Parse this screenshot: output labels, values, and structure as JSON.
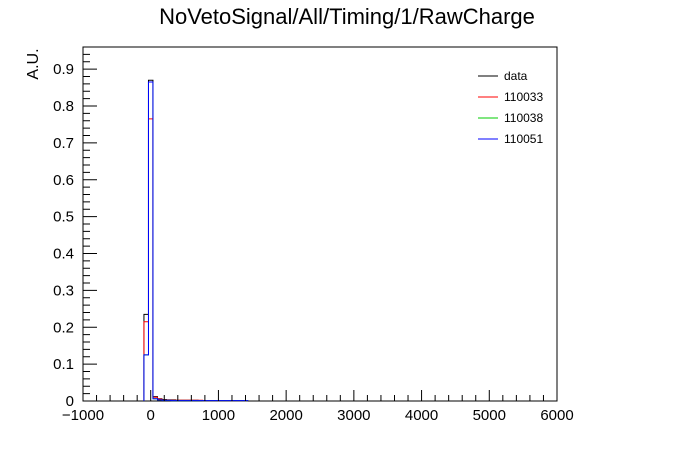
{
  "chart_data": {
    "type": "histogram",
    "title": "NoVetoSignal/All/Timing/1/RawCharge",
    "xlabel": "",
    "ylabel": "A.U.",
    "xlim": [
      -1000,
      6000
    ],
    "ylim": [
      0,
      0.96
    ],
    "x_ticks": [
      -1000,
      0,
      1000,
      2000,
      3000,
      4000,
      5000,
      6000
    ],
    "x_tick_labels": [
      "−1000",
      "0",
      "1000",
      "2000",
      "3000",
      "4000",
      "5000",
      "6000"
    ],
    "y_ticks": [
      0,
      0.1,
      0.2,
      0.3,
      0.4,
      0.5,
      0.6,
      0.7,
      0.8,
      0.9
    ],
    "y_tick_labels": [
      "0",
      "0.1",
      "0.2",
      "0.3",
      "0.4",
      "0.5",
      "0.6",
      "0.7",
      "0.8",
      "0.9"
    ],
    "bin_edges": [
      -100,
      -33,
      33,
      100,
      167,
      233,
      300,
      367,
      433,
      500,
      567,
      633,
      700,
      767,
      833,
      900,
      967,
      1033,
      1100,
      1167,
      1233,
      1300,
      1367,
      1433
    ],
    "legend_position": "top-right",
    "series": [
      {
        "name": "data",
        "color": "#000000",
        "values": [
          0.235,
          0.87,
          0.012,
          0.006,
          0.004,
          0.003,
          0.003,
          0.002,
          0.002,
          0.002,
          0.002,
          0.002,
          0.001,
          0.001,
          0.001,
          0.001,
          0.001,
          0.001,
          0.001,
          0.001,
          0.001,
          0.001,
          0.001
        ]
      },
      {
        "name": "110033",
        "color": "#ff0000",
        "values": [
          0.215,
          0.765,
          0.01,
          0.005,
          0.003,
          0.003,
          0.002,
          0.002,
          0.002,
          0.002,
          0.002,
          0.002,
          0.002,
          0.001,
          0.001,
          0.001,
          0.001,
          0.001,
          0.001,
          0.001,
          0.001,
          0.001,
          0.001
        ]
      },
      {
        "name": "110038",
        "color": "#00cc00",
        "values": [
          0.125,
          0.865,
          0.006,
          0.003,
          0.002,
          0.002,
          0.001,
          0.001,
          0.001,
          0.001,
          0.001,
          0.001,
          0.001,
          0.001,
          0.001,
          0.001,
          0.001,
          0.001,
          0.001,
          0.001,
          0.001,
          0.001,
          0.001
        ]
      },
      {
        "name": "110051",
        "color": "#0000ff",
        "values": [
          0.125,
          0.865,
          0.006,
          0.003,
          0.002,
          0.002,
          0.001,
          0.001,
          0.001,
          0.001,
          0.001,
          0.001,
          0.001,
          0.001,
          0.001,
          0.001,
          0.001,
          0.001,
          0.001,
          0.001,
          0.001,
          0.001,
          0.001
        ]
      }
    ]
  }
}
